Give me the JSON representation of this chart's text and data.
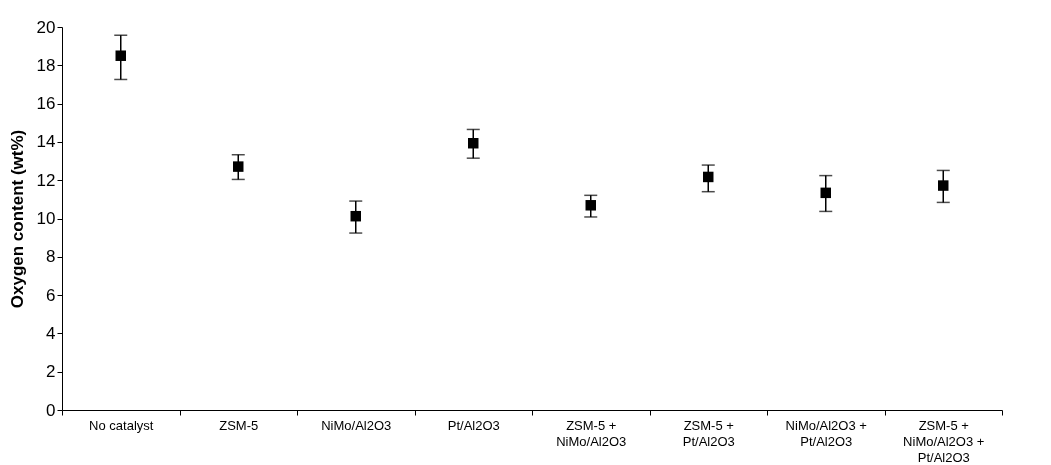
{
  "chart_data": {
    "type": "scatter",
    "ylabel": "Oxygen content (wt%)",
    "categories": [
      "No catalyst",
      "ZSM-5",
      "NiMo/Al2O3",
      "Pt/Al2O3",
      "ZSM-5 + NiMo/Al2O3",
      "ZSM-5 + Pt/Al2O3",
      "NiMo/Al2O3 + Pt/Al2O3",
      "ZSM-5 + NiMo/Al2O3 + Pt/Al2O3"
    ],
    "series": [
      {
        "color": "#000000",
        "values": [
          18.5,
          12.71,
          10.12,
          13.93,
          10.69,
          12.17,
          11.34,
          11.72
        ],
        "errors": [
          [
            17.26,
            19.57
          ],
          [
            12.04,
            13.33
          ],
          [
            9.24,
            10.91
          ],
          [
            13.15,
            14.65
          ],
          [
            10.08,
            11.21
          ],
          [
            11.4,
            12.79
          ],
          [
            10.37,
            12.24
          ],
          [
            10.84,
            12.51
          ]
        ]
      }
    ],
    "marker": "square",
    "ylim": [
      0,
      20
    ],
    "yticks": [
      0,
      2,
      4,
      6,
      8,
      10,
      12,
      14,
      16,
      18,
      20
    ],
    "grid": false,
    "legend": false
  }
}
